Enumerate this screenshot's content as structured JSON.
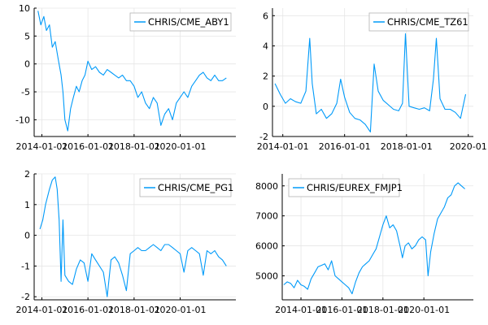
{
  "colors": {
    "series": "#009af9",
    "grid": "#e6e6e6",
    "axis": "#000000",
    "legend_border": "#b3b3b3"
  },
  "chart_data": [
    {
      "type": "line",
      "title": "",
      "xlabel": "",
      "ylabel": "",
      "legend": {
        "position": "top-right",
        "entries": [
          "CHRIS/CME_ABY1"
        ]
      },
      "grid": true,
      "xlim": [
        "2013-09-01",
        "2022-06-01"
      ],
      "ylim": [
        -13,
        10
      ],
      "xticks": [
        "2014-01-01",
        "2016-01-01",
        "2018-01-01",
        "2020-01-01"
      ],
      "yticks": [
        10,
        5,
        0,
        -5,
        -10
      ],
      "series": [
        {
          "name": "CHRIS/CME_ABY1",
          "x": [
            "2013-11-01",
            "2013-12-15",
            "2014-02-01",
            "2014-03-15",
            "2014-05-01",
            "2014-06-15",
            "2014-08-01",
            "2014-09-15",
            "2014-11-01",
            "2014-12-01",
            "2015-01-01",
            "2015-02-15",
            "2015-04-01",
            "2015-05-15",
            "2015-07-01",
            "2015-08-15",
            "2015-10-01",
            "2015-11-15",
            "2016-01-01",
            "2016-03-01",
            "2016-05-01",
            "2016-07-01",
            "2016-09-01",
            "2016-11-01",
            "2017-01-01",
            "2017-03-01",
            "2017-05-01",
            "2017-07-01",
            "2017-09-01",
            "2017-11-01",
            "2018-01-01",
            "2018-03-01",
            "2018-05-01",
            "2018-07-01",
            "2018-09-01",
            "2018-11-01",
            "2019-01-01",
            "2019-03-01",
            "2019-05-01",
            "2019-07-01",
            "2019-09-01",
            "2019-11-01",
            "2020-01-01",
            "2020-03-01",
            "2020-05-01",
            "2020-07-01",
            "2020-09-01",
            "2020-11-01",
            "2021-01-01",
            "2021-03-01",
            "2021-05-01",
            "2021-07-01",
            "2021-09-01",
            "2021-11-01",
            "2022-01-01"
          ],
          "values": [
            9.5,
            7,
            8.5,
            6,
            7,
            3,
            4,
            1,
            -2,
            -5,
            -10,
            -12,
            -8,
            -6,
            -4,
            -5,
            -3,
            -2,
            0.5,
            -1,
            -0.5,
            -1.5,
            -2,
            -1,
            -1.5,
            -2,
            -2.5,
            -2,
            -3,
            -3,
            -4,
            -6,
            -5,
            -7,
            -8,
            -6,
            -7,
            -11,
            -9,
            -8,
            -10,
            -7,
            -6,
            -5,
            -6,
            -4,
            -3,
            -2,
            -1.5,
            -2.5,
            -3,
            -2,
            -3,
            -3,
            -2.5
          ]
        }
      ]
    },
    {
      "type": "line",
      "title": "",
      "xlabel": "",
      "ylabel": "",
      "legend": {
        "position": "top-right",
        "entries": [
          "CHRIS/CME_TZ61"
        ]
      },
      "grid": true,
      "xlim": [
        "2013-09-01",
        "2020-03-01"
      ],
      "ylim": [
        -2,
        6.5
      ],
      "xticks": [
        "2014-01-01",
        "2016-01-01",
        "2018-01-01",
        "2020-01-01"
      ],
      "xticklabels": [
        "2014-01-01",
        "2016-01-01",
        "2018-01-01",
        "2020-01"
      ],
      "yticks": [
        6,
        4,
        2,
        0,
        -2
      ],
      "series": [
        {
          "name": "CHRIS/CME_TZ61",
          "x": [
            "2013-10-01",
            "2013-12-01",
            "2014-02-01",
            "2014-04-01",
            "2014-06-01",
            "2014-08-01",
            "2014-10-01",
            "2014-11-15",
            "2014-12-15",
            "2015-02-01",
            "2015-04-01",
            "2015-06-01",
            "2015-08-01",
            "2015-10-01",
            "2015-11-15",
            "2016-01-01",
            "2016-03-01",
            "2016-05-01",
            "2016-07-01",
            "2016-09-01",
            "2016-11-01",
            "2016-12-15",
            "2017-02-01",
            "2017-04-01",
            "2017-06-01",
            "2017-08-01",
            "2017-10-01",
            "2017-11-15",
            "2017-12-20",
            "2018-02-01",
            "2018-04-01",
            "2018-06-01",
            "2018-08-01",
            "2018-10-01",
            "2018-11-15",
            "2018-12-20",
            "2019-02-01",
            "2019-04-01",
            "2019-06-01",
            "2019-08-01",
            "2019-10-01",
            "2019-12-01"
          ],
          "values": [
            1.5,
            0.8,
            0.2,
            0.5,
            0.3,
            0.2,
            1.0,
            4.5,
            1.5,
            -0.5,
            -0.2,
            -0.8,
            -0.5,
            0.2,
            1.8,
            0.6,
            -0.4,
            -0.8,
            -0.9,
            -1.2,
            -1.7,
            2.8,
            1.0,
            0.4,
            0.1,
            -0.2,
            -0.3,
            0.2,
            4.8,
            0.0,
            -0.1,
            -0.2,
            -0.1,
            -0.3,
            1.8,
            4.5,
            0.5,
            -0.2,
            -0.2,
            -0.4,
            -0.8,
            0.8
          ]
        }
      ]
    },
    {
      "type": "line",
      "title": "",
      "xlabel": "",
      "ylabel": "",
      "legend": {
        "position": "top-right",
        "entries": [
          "CHRIS/CME_PG1"
        ]
      },
      "grid": true,
      "xlim": [
        "2013-09-01",
        "2022-06-01"
      ],
      "ylim": [
        -2.1,
        2.0
      ],
      "xticks": [
        "2014-01-01",
        "2016-01-01",
        "2018-01-01",
        "2020-01-01"
      ],
      "yticks": [
        2,
        1,
        0,
        -1,
        -2
      ],
      "series": [
        {
          "name": "CHRIS/CME_PG1",
          "x": [
            "2013-12-01",
            "2014-01-15",
            "2014-03-01",
            "2014-05-01",
            "2014-06-15",
            "2014-08-01",
            "2014-09-01",
            "2014-10-01",
            "2014-11-01",
            "2014-12-01",
            "2015-01-01",
            "2015-03-01",
            "2015-05-01",
            "2015-07-01",
            "2015-09-01",
            "2015-11-01",
            "2016-01-01",
            "2016-03-01",
            "2016-05-01",
            "2016-07-01",
            "2016-09-01",
            "2016-11-01",
            "2017-01-01",
            "2017-03-01",
            "2017-05-01",
            "2017-07-01",
            "2017-09-01",
            "2017-11-01",
            "2018-01-01",
            "2018-03-01",
            "2018-05-01",
            "2018-07-01",
            "2018-09-01",
            "2018-11-01",
            "2019-01-01",
            "2019-03-01",
            "2019-05-01",
            "2019-07-01",
            "2019-09-01",
            "2019-11-01",
            "2020-01-01",
            "2020-03-01",
            "2020-05-01",
            "2020-07-01",
            "2020-09-01",
            "2020-11-01",
            "2021-01-01",
            "2021-03-01",
            "2021-05-01",
            "2021-07-01",
            "2021-09-01",
            "2021-11-01",
            "2022-01-01"
          ],
          "values": [
            0.2,
            0.5,
            1.0,
            1.5,
            1.8,
            1.9,
            1.5,
            0.5,
            -1.5,
            0.5,
            -1.3,
            -1.5,
            -1.6,
            -1.1,
            -0.8,
            -0.9,
            -1.5,
            -0.6,
            -0.8,
            -1.0,
            -1.2,
            -2.0,
            -0.8,
            -0.7,
            -0.9,
            -1.3,
            -1.8,
            -0.6,
            -0.5,
            -0.4,
            -0.5,
            -0.5,
            -0.4,
            -0.3,
            -0.4,
            -0.5,
            -0.3,
            -0.3,
            -0.4,
            -0.5,
            -0.6,
            -1.2,
            -0.5,
            -0.4,
            -0.5,
            -0.6,
            -1.3,
            -0.5,
            -0.6,
            -0.5,
            -0.7,
            -0.8,
            -1.0
          ]
        }
      ]
    },
    {
      "type": "line",
      "title": "",
      "xlabel": "",
      "ylabel": "",
      "legend": {
        "position": "top-left",
        "entries": [
          "CHRIS/EUREX_FMJP1"
        ]
      },
      "grid": true,
      "xlim": [
        "2013-02-01",
        "2022-06-01"
      ],
      "ylim": [
        4200,
        8400
      ],
      "xticks": [
        "2014-01-01",
        "2016-01-01",
        "2018-01-01",
        "2020-01-01"
      ],
      "yticks": [
        8000,
        7000,
        6000,
        5000
      ],
      "series": [
        {
          "name": "CHRIS/EUREX_FMJP1",
          "x": [
            "2013-03-01",
            "2013-05-01",
            "2013-07-01",
            "2013-09-01",
            "2013-11-01",
            "2014-01-01",
            "2014-03-01",
            "2014-05-01",
            "2014-07-01",
            "2014-09-01",
            "2014-11-01",
            "2015-01-01",
            "2015-03-01",
            "2015-05-01",
            "2015-07-01",
            "2015-09-01",
            "2015-11-01",
            "2016-01-01",
            "2016-03-01",
            "2016-05-01",
            "2016-07-01",
            "2016-09-01",
            "2016-11-01",
            "2017-01-01",
            "2017-03-01",
            "2017-05-01",
            "2017-07-01",
            "2017-09-01",
            "2017-11-01",
            "2018-01-01",
            "2018-03-01",
            "2018-05-01",
            "2018-07-01",
            "2018-09-01",
            "2018-11-01",
            "2018-12-15",
            "2019-02-01",
            "2019-04-01",
            "2019-06-01",
            "2019-08-01",
            "2019-10-01",
            "2019-12-01",
            "2020-02-01",
            "2020-03-15",
            "2020-05-01",
            "2020-07-01",
            "2020-09-01",
            "2020-11-01",
            "2021-01-01",
            "2021-03-01",
            "2021-05-01",
            "2021-07-01",
            "2021-09-01",
            "2021-11-01",
            "2022-01-01"
          ],
          "values": [
            4700,
            4800,
            4750,
            4600,
            4850,
            4700,
            4650,
            4550,
            4900,
            5100,
            5300,
            5350,
            5400,
            5200,
            5500,
            5000,
            4900,
            4800,
            4700,
            4600,
            4400,
            4800,
            5100,
            5300,
            5400,
            5500,
            5700,
            5900,
            6300,
            6700,
            7000,
            6600,
            6700,
            6500,
            6000,
            5600,
            6000,
            6100,
            5900,
            6000,
            6200,
            6300,
            6200,
            5000,
            5800,
            6400,
            6900,
            7100,
            7300,
            7600,
            7700,
            8000,
            8100,
            8000,
            7900
          ]
        }
      ]
    }
  ]
}
